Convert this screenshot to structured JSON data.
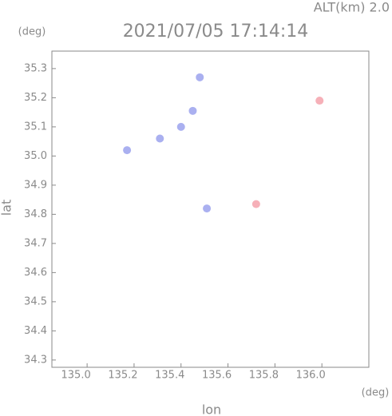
{
  "chart_data": {
    "type": "scatter",
    "title": "2021/07/05 17:14:14",
    "annotation": "ALT(km) 2.0",
    "x_label": "lon",
    "y_label": "lat",
    "x_unit": "(deg)",
    "y_unit": "(deg)",
    "xlim": [
      134.85,
      136.2
    ],
    "ylim": [
      34.275,
      35.36
    ],
    "xticks": [
      {
        "value": 135,
        "label": "135.0"
      },
      135.2,
      135.4,
      135.6,
      135.8,
      {
        "value": 136,
        "label": "136.0"
      }
    ],
    "yticks": [
      34.3,
      34.4,
      34.5,
      34.6,
      34.7,
      34.8,
      34.9,
      {
        "value": 35,
        "label": "35.0"
      },
      35.1,
      35.2,
      35.3
    ],
    "series": [
      {
        "color": "#aab0f0",
        "x": [
          135.17,
          135.31,
          135.4,
          135.45,
          135.48,
          135.51
        ],
        "values": [
          35.02,
          35.06,
          35.1,
          35.155,
          35.27,
          34.82
        ]
      },
      {
        "color": "#f6b0b8",
        "x": [
          135.72,
          135.99
        ],
        "values": [
          34.835,
          35.19
        ]
      }
    ]
  }
}
